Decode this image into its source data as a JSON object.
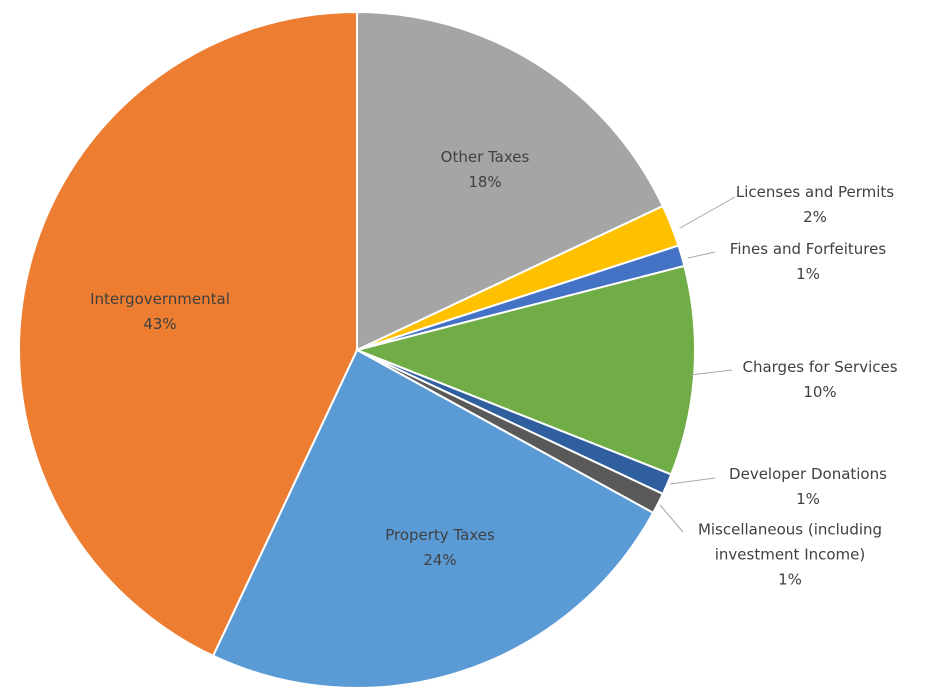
{
  "chart_data": {
    "type": "pie",
    "categories": [
      "Other Taxes",
      "Licenses and Permits",
      "Fines and Forfeitures",
      "Charges for Services",
      "Developer Donations",
      "Miscellaneous (including investment Income)",
      "Property Taxes",
      "Intergovernmental"
    ],
    "values": [
      18,
      2,
      1,
      10,
      1,
      1,
      24,
      43
    ],
    "value_labels": [
      "18%",
      "2%",
      "1%",
      "10%",
      "1%",
      "1%",
      "24%",
      "43%"
    ],
    "colors": [
      "#a5a5a5",
      "#ffc000",
      "#4472c4",
      "#70ad47",
      "#2f5f9e",
      "#595959",
      "#5b9bd5",
      "#ed7d31"
    ]
  }
}
